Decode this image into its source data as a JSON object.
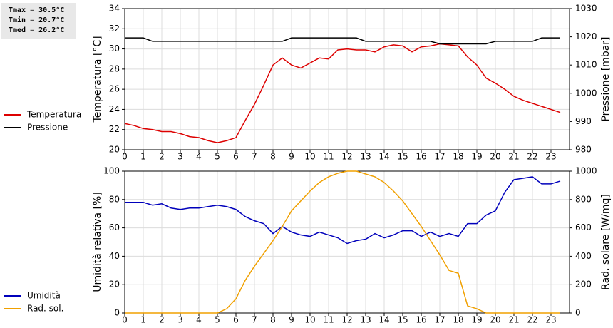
{
  "chart_data": [
    {
      "type": "line",
      "annotations": [
        "Tmax = 30.5°C",
        "Tmin = 20.7°C",
        "Tmed = 26.2°C"
      ],
      "ylabel": "Temperatura [°C]",
      "y2label": "Pressione [mbar]",
      "x": [
        0,
        0.5,
        1,
        1.5,
        2,
        2.5,
        3,
        3.5,
        4,
        4.5,
        5,
        5.5,
        6,
        6.5,
        7,
        7.5,
        8,
        8.5,
        9,
        9.5,
        10,
        10.5,
        11,
        11.5,
        12,
        12.5,
        13,
        13.5,
        14,
        14.5,
        15,
        15.5,
        16,
        16.5,
        17,
        17.5,
        18,
        18.5,
        19,
        19.5,
        20,
        20.5,
        21,
        21.5,
        22,
        22.5,
        23,
        23.5
      ],
      "xlim": [
        0,
        24
      ],
      "xticks": [
        0,
        1,
        2,
        3,
        4,
        5,
        6,
        7,
        8,
        9,
        10,
        11,
        12,
        13,
        14,
        15,
        16,
        17,
        18,
        19,
        20,
        21,
        22,
        23
      ],
      "ylim": [
        20,
        34
      ],
      "yticks": [
        20,
        22,
        24,
        26,
        28,
        30,
        32,
        34
      ],
      "y2lim": [
        980,
        1030
      ],
      "y2ticks": [
        980,
        990,
        1000,
        1010,
        1020,
        1030
      ],
      "grid": true,
      "series": [
        {
          "name": "Temperatura",
          "color": "#dd0000",
          "values": [
            22.6,
            22.4,
            22.1,
            22.0,
            21.8,
            21.8,
            21.6,
            21.3,
            21.2,
            20.9,
            20.7,
            20.9,
            21.2,
            22.9,
            24.5,
            26.4,
            28.4,
            29.1,
            28.4,
            28.1,
            28.6,
            29.1,
            29.0,
            29.9,
            30.0,
            29.9,
            29.9,
            29.7,
            30.2,
            30.4,
            30.3,
            29.7,
            30.2,
            30.3,
            30.5,
            30.4,
            30.3,
            29.2,
            28.4,
            27.1,
            26.6,
            26.0,
            25.3,
            24.9,
            24.6,
            24.3,
            24.0,
            23.7
          ]
        },
        {
          "name": "Pressione",
          "color": "#000000",
          "axis": "y2",
          "values": [
            1019.6,
            1019.6,
            1019.6,
            1018.4,
            1018.4,
            1018.4,
            1018.4,
            1018.4,
            1018.4,
            1018.4,
            1018.4,
            1018.4,
            1018.4,
            1018.4,
            1018.4,
            1018.4,
            1018.4,
            1018.4,
            1019.6,
            1019.6,
            1019.6,
            1019.6,
            1019.6,
            1019.6,
            1019.6,
            1019.6,
            1018.4,
            1018.4,
            1018.4,
            1018.4,
            1018.4,
            1018.4,
            1018.4,
            1018.4,
            1017.5,
            1017.5,
            1017.5,
            1017.5,
            1017.5,
            1017.5,
            1018.4,
            1018.4,
            1018.4,
            1018.4,
            1018.4,
            1019.6,
            1019.6,
            1019.6
          ]
        }
      ]
    },
    {
      "type": "line",
      "ylabel": "Umidità relativa [%]",
      "y2label": "Rad. solare [W/mq]",
      "x": [
        0,
        0.5,
        1,
        1.5,
        2,
        2.5,
        3,
        3.5,
        4,
        4.5,
        5,
        5.5,
        6,
        6.5,
        7,
        7.5,
        8,
        8.5,
        9,
        9.5,
        10,
        10.5,
        11,
        11.5,
        12,
        12.5,
        13,
        13.5,
        14,
        14.5,
        15,
        15.5,
        16,
        16.5,
        17,
        17.5,
        18,
        18.5,
        19,
        19.5,
        20,
        20.5,
        21,
        21.5,
        22,
        22.5,
        23,
        23.5
      ],
      "xlim": [
        0,
        24
      ],
      "xticks": [
        0,
        1,
        2,
        3,
        4,
        5,
        6,
        7,
        8,
        9,
        10,
        11,
        12,
        13,
        14,
        15,
        16,
        17,
        18,
        19,
        20,
        21,
        22,
        23
      ],
      "ylim": [
        0,
        100
      ],
      "yticks": [
        0,
        20,
        40,
        60,
        80,
        100
      ],
      "y2lim": [
        0,
        1000
      ],
      "y2ticks": [
        0,
        200,
        400,
        600,
        800,
        1000
      ],
      "grid": true,
      "series": [
        {
          "name": "Umidità",
          "color": "#0000bb",
          "values": [
            78,
            78,
            78,
            76,
            77,
            74,
            73,
            74,
            74,
            75,
            76,
            75,
            73,
            68,
            65,
            63,
            56,
            61,
            57,
            55,
            54,
            57,
            55,
            53,
            49,
            51,
            52,
            56,
            53,
            55,
            58,
            58,
            54,
            57,
            54,
            56,
            54,
            63,
            63,
            69,
            72,
            85,
            94,
            95,
            96,
            91,
            91,
            93
          ]
        },
        {
          "name": "Rad. sol.",
          "color": "#f0a000",
          "axis": "y2",
          "values": [
            0,
            0,
            0,
            0,
            0,
            0,
            0,
            0,
            0,
            0,
            0,
            30,
            100,
            230,
            330,
            420,
            510,
            610,
            720,
            790,
            860,
            920,
            960,
            985,
            1000,
            1000,
            980,
            960,
            920,
            860,
            790,
            700,
            610,
            510,
            410,
            300,
            280,
            50,
            30,
            0,
            0,
            0,
            0,
            0,
            0,
            0,
            0,
            0
          ]
        }
      ]
    }
  ]
}
